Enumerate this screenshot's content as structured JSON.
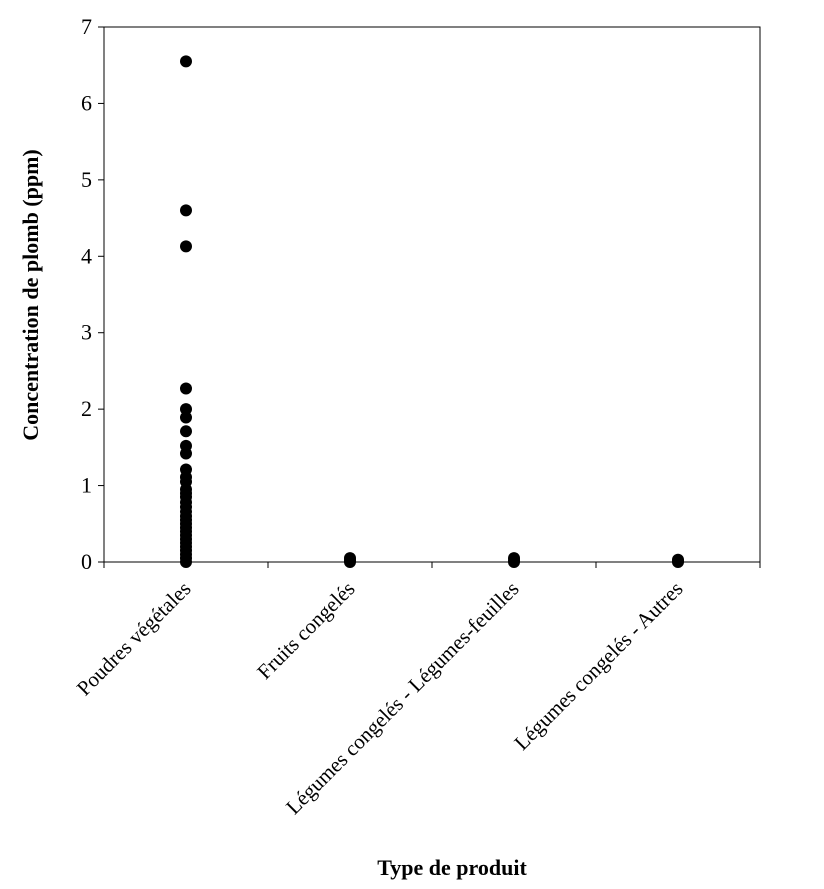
{
  "chart_data": {
    "type": "scatter",
    "title": "",
    "xlabel": "Type de produit",
    "ylabel": "Concentration de plomb (ppm)",
    "ylim": [
      0,
      7
    ],
    "yticks": [
      "0",
      "1",
      "2",
      "3",
      "4",
      "5",
      "6",
      "7"
    ],
    "categories": [
      "Poudres végétales",
      "Fruits congelés",
      "Légumes congelés - Légumes-feuilles",
      "Légumes congelés - Autres"
    ],
    "grid": false,
    "legend": "none",
    "marker_color": "#000000",
    "series": [
      {
        "name": "Poudres végétales",
        "values": [
          6.55,
          4.6,
          4.13,
          2.27,
          2.0,
          1.89,
          1.71,
          1.52,
          1.42,
          1.21,
          1.11,
          1.05,
          0.95,
          0.9,
          0.85,
          0.78,
          0.72,
          0.66,
          0.6,
          0.55,
          0.5,
          0.45,
          0.4,
          0.35,
          0.3,
          0.25,
          0.2,
          0.15,
          0.1,
          0.05,
          0.0
        ]
      },
      {
        "name": "Fruits congelés",
        "values": [
          0.05,
          0.02,
          0.0
        ]
      },
      {
        "name": "Légumes congelés - Légumes-feuilles",
        "values": [
          0.05,
          0.02,
          0.0
        ]
      },
      {
        "name": "Légumes congelés - Autres",
        "values": [
          0.03,
          0.01,
          0.0
        ]
      }
    ]
  }
}
